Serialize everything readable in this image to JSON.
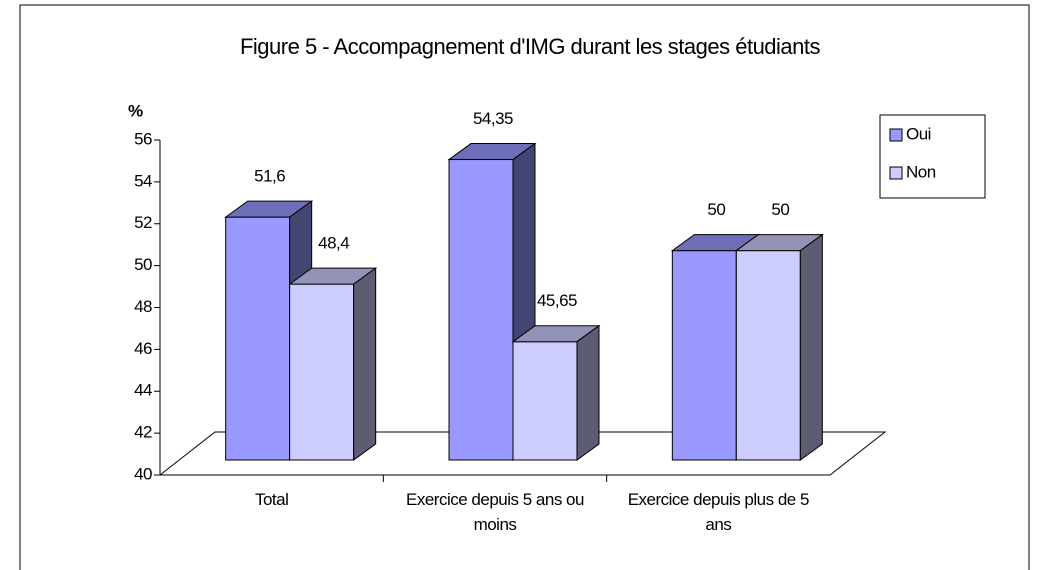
{
  "chart_data": {
    "type": "bar3d",
    "title": "Figure 5 - Accompagnement d'IMG durant les stages étudiants",
    "y_label": "%",
    "categories": [
      "Total",
      "Exercice depuis 5 ans ou moins",
      "Exercice depuis plus de 5 ans"
    ],
    "series": [
      {
        "name": "Oui",
        "color": "#9999ff",
        "values": [
          51.6,
          54.35,
          50
        ],
        "value_labels": [
          "51,6",
          "54,35",
          "50"
        ]
      },
      {
        "name": "Non",
        "color": "#ccccff",
        "values": [
          48.4,
          45.65,
          50
        ],
        "value_labels": [
          "48,4",
          "45,65",
          "50"
        ]
      }
    ],
    "ylim": [
      40,
      56
    ],
    "yticks": [
      40,
      42,
      44,
      46,
      48,
      50,
      52,
      54,
      56
    ],
    "grid": false,
    "legend": "right"
  }
}
